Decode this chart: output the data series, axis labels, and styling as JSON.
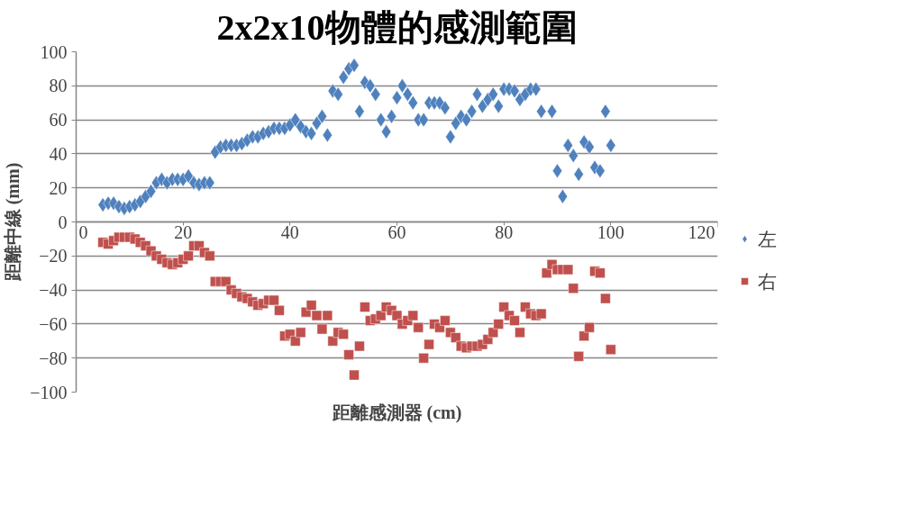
{
  "chart_data": {
    "type": "scatter",
    "title": "2x2x10物體的感測範圍",
    "xlabel": "距離感測器 (cm)",
    "ylabel": "距離中線 (mm)",
    "xlim": [
      0,
      120
    ],
    "xticks": [
      0,
      20,
      40,
      60,
      80,
      100,
      120
    ],
    "ylim": [
      -100,
      100
    ],
    "yticks": [
      -100,
      -80,
      -60,
      -40,
      -20,
      0,
      20,
      40,
      60,
      80,
      100
    ],
    "grid": "y",
    "legend": "right",
    "series": [
      {
        "name": "左",
        "color": "#4f81bd",
        "marker": "diamond",
        "x": [
          5,
          6,
          7,
          8,
          9,
          10,
          11,
          12,
          13,
          14,
          15,
          16,
          17,
          18,
          19,
          20,
          21,
          22,
          23,
          24,
          25,
          26,
          27,
          28,
          29,
          30,
          31,
          32,
          33,
          34,
          35,
          36,
          37,
          38,
          39,
          40,
          41,
          42,
          43,
          44,
          45,
          46,
          47,
          48,
          49,
          50,
          51,
          52,
          53,
          54,
          55,
          56,
          57,
          58,
          59,
          60,
          61,
          62,
          63,
          64,
          65,
          66,
          67,
          68,
          69,
          70,
          71,
          72,
          73,
          74,
          75,
          76,
          77,
          78,
          79,
          80,
          81,
          82,
          83,
          84,
          85,
          86,
          87,
          89,
          90,
          91,
          92,
          93,
          94,
          95,
          96,
          97,
          98,
          99,
          100
        ],
        "values": [
          10,
          11,
          11,
          9,
          8,
          9,
          10,
          12,
          15,
          18,
          23,
          25,
          23,
          25,
          25,
          25,
          27,
          23,
          22,
          23,
          23,
          41,
          44,
          45,
          45,
          45,
          46,
          48,
          50,
          50,
          52,
          53,
          55,
          55,
          55,
          57,
          60,
          56,
          53,
          52,
          58,
          62,
          51,
          77,
          75,
          85,
          90,
          92,
          65,
          82,
          80,
          75,
          60,
          53,
          62,
          73,
          80,
          75,
          70,
          60,
          60,
          70,
          70,
          70,
          67,
          50,
          58,
          62,
          60,
          65,
          75,
          68,
          72,
          75,
          68,
          78,
          78,
          77,
          72,
          75,
          78,
          78,
          65,
          65,
          30,
          15,
          45,
          39,
          28,
          47,
          44,
          32,
          30,
          65,
          45
        ]
      },
      {
        "name": "右",
        "color": "#c0504d",
        "marker": "square",
        "x": [
          5,
          6,
          7,
          8,
          9,
          10,
          11,
          12,
          13,
          14,
          15,
          16,
          17,
          18,
          19,
          20,
          21,
          22,
          23,
          24,
          25,
          26,
          27,
          28,
          29,
          30,
          31,
          32,
          33,
          34,
          35,
          36,
          37,
          38,
          39,
          40,
          41,
          42,
          43,
          44,
          45,
          46,
          47,
          48,
          49,
          50,
          51,
          52,
          53,
          54,
          55,
          56,
          57,
          58,
          59,
          60,
          61,
          62,
          63,
          64,
          65,
          66,
          67,
          68,
          69,
          70,
          71,
          72,
          73,
          74,
          75,
          76,
          77,
          78,
          79,
          80,
          81,
          82,
          83,
          84,
          85,
          86,
          87,
          88,
          89,
          90,
          91,
          92,
          93,
          94,
          95,
          96,
          97,
          98,
          99,
          100
        ],
        "values": [
          -12,
          -13,
          -11,
          -9,
          -9,
          -9,
          -10,
          -12,
          -14,
          -17,
          -20,
          -22,
          -24,
          -25,
          -24,
          -22,
          -20,
          -14,
          -14,
          -18,
          -20,
          -35,
          -35,
          -35,
          -40,
          -42,
          -44,
          -45,
          -47,
          -49,
          -48,
          -46,
          -46,
          -52,
          -67,
          -66,
          -70,
          -65,
          -53,
          -49,
          -55,
          -63,
          -55,
          -70,
          -65,
          -66,
          -78,
          -90,
          -73,
          -50,
          -58,
          -57,
          -55,
          -50,
          -52,
          -55,
          -60,
          -58,
          -55,
          -62,
          -80,
          -72,
          -60,
          -62,
          -58,
          -65,
          -68,
          -73,
          -74,
          -73,
          -73,
          -72,
          -69,
          -65,
          -60,
          -50,
          -55,
          -58,
          -65,
          -50,
          -54,
          -55,
          -54,
          -30,
          -25,
          -28,
          -28,
          -28,
          -39,
          -79,
          -67,
          -62,
          -29,
          -30,
          -45,
          -75
        ]
      }
    ]
  }
}
